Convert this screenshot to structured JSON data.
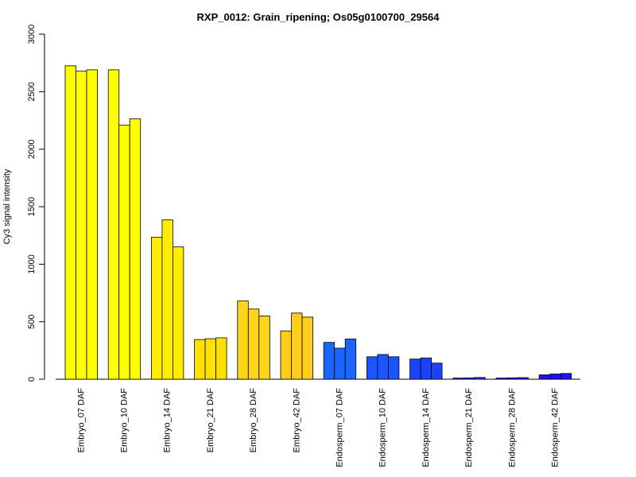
{
  "chart_data": {
    "type": "bar",
    "title": "RXP_0012: Grain_ripening; Os05g0100700_29564",
    "xlabel": "",
    "ylabel": "Cy3 signal intensity",
    "ylim": [
      0,
      3000
    ],
    "yticks": [
      0,
      500,
      1000,
      1500,
      2000,
      2500,
      3000
    ],
    "grid": false,
    "legend": "none",
    "categories": [
      "Embryo_07 DAF",
      "Embryo_10 DAF",
      "Embryo_14 DAF",
      "Embryo_21 DAF",
      "Embryo_28 DAF",
      "Embryo_42 DAF",
      "Endosperm_07 DAF",
      "Endosperm_10 DAF",
      "Endosperm_14 DAF",
      "Endosperm_21 DAF",
      "Endosperm_28 DAF",
      "Endosperm_42 DAF"
    ],
    "replicates_per_category": 3,
    "values": [
      [
        2725,
        2680,
        2690
      ],
      [
        2690,
        2210,
        2265
      ],
      [
        1235,
        1385,
        1150
      ],
      [
        345,
        352,
        360
      ],
      [
        680,
        610,
        550
      ],
      [
        420,
        575,
        540
      ],
      [
        320,
        270,
        350
      ],
      [
        195,
        215,
        195
      ],
      [
        175,
        185,
        140
      ],
      [
        10,
        12,
        15
      ],
      [
        10,
        12,
        14
      ],
      [
        38,
        45,
        50
      ]
    ],
    "colors": [
      "#ffff00",
      "#ffff00",
      "#ffee00",
      "#ffe100",
      "#ffd51a",
      "#ffcc1a",
      "#1a66ff",
      "#1a55ff",
      "#1a44ff",
      "#1a33ff",
      "#1a22ff",
      "#1a11ff"
    ]
  }
}
